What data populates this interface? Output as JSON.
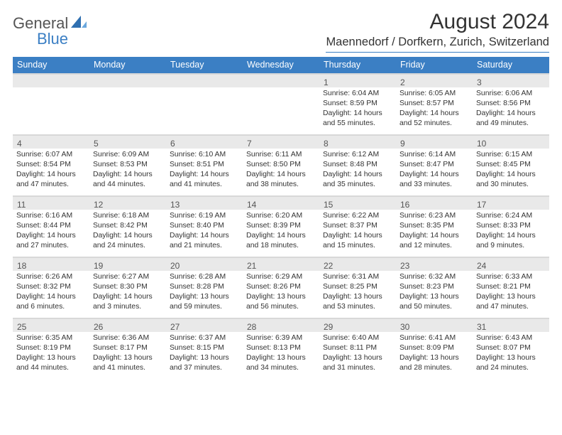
{
  "logo": {
    "text1": "General",
    "text2": "Blue"
  },
  "title": "August 2024",
  "location": "Maennedorf / Dorfkern, Zurich, Switzerland",
  "colors": {
    "header_bg": "#3b7fc4",
    "header_fg": "#ffffff",
    "daynum_bg": "#e9e9e9",
    "daynum_border": "#d8d8d8",
    "text": "#333333",
    "logo_gray": "#555555",
    "logo_blue": "#3b7fc4"
  },
  "day_headers": [
    "Sunday",
    "Monday",
    "Tuesday",
    "Wednesday",
    "Thursday",
    "Friday",
    "Saturday"
  ],
  "weeks": [
    [
      {
        "day": "",
        "sunrise": "",
        "sunset": "",
        "daylight": ""
      },
      {
        "day": "",
        "sunrise": "",
        "sunset": "",
        "daylight": ""
      },
      {
        "day": "",
        "sunrise": "",
        "sunset": "",
        "daylight": ""
      },
      {
        "day": "",
        "sunrise": "",
        "sunset": "",
        "daylight": ""
      },
      {
        "day": "1",
        "sunrise": "Sunrise: 6:04 AM",
        "sunset": "Sunset: 8:59 PM",
        "daylight": "Daylight: 14 hours and 55 minutes."
      },
      {
        "day": "2",
        "sunrise": "Sunrise: 6:05 AM",
        "sunset": "Sunset: 8:57 PM",
        "daylight": "Daylight: 14 hours and 52 minutes."
      },
      {
        "day": "3",
        "sunrise": "Sunrise: 6:06 AM",
        "sunset": "Sunset: 8:56 PM",
        "daylight": "Daylight: 14 hours and 49 minutes."
      }
    ],
    [
      {
        "day": "4",
        "sunrise": "Sunrise: 6:07 AM",
        "sunset": "Sunset: 8:54 PM",
        "daylight": "Daylight: 14 hours and 47 minutes."
      },
      {
        "day": "5",
        "sunrise": "Sunrise: 6:09 AM",
        "sunset": "Sunset: 8:53 PM",
        "daylight": "Daylight: 14 hours and 44 minutes."
      },
      {
        "day": "6",
        "sunrise": "Sunrise: 6:10 AM",
        "sunset": "Sunset: 8:51 PM",
        "daylight": "Daylight: 14 hours and 41 minutes."
      },
      {
        "day": "7",
        "sunrise": "Sunrise: 6:11 AM",
        "sunset": "Sunset: 8:50 PM",
        "daylight": "Daylight: 14 hours and 38 minutes."
      },
      {
        "day": "8",
        "sunrise": "Sunrise: 6:12 AM",
        "sunset": "Sunset: 8:48 PM",
        "daylight": "Daylight: 14 hours and 35 minutes."
      },
      {
        "day": "9",
        "sunrise": "Sunrise: 6:14 AM",
        "sunset": "Sunset: 8:47 PM",
        "daylight": "Daylight: 14 hours and 33 minutes."
      },
      {
        "day": "10",
        "sunrise": "Sunrise: 6:15 AM",
        "sunset": "Sunset: 8:45 PM",
        "daylight": "Daylight: 14 hours and 30 minutes."
      }
    ],
    [
      {
        "day": "11",
        "sunrise": "Sunrise: 6:16 AM",
        "sunset": "Sunset: 8:44 PM",
        "daylight": "Daylight: 14 hours and 27 minutes."
      },
      {
        "day": "12",
        "sunrise": "Sunrise: 6:18 AM",
        "sunset": "Sunset: 8:42 PM",
        "daylight": "Daylight: 14 hours and 24 minutes."
      },
      {
        "day": "13",
        "sunrise": "Sunrise: 6:19 AM",
        "sunset": "Sunset: 8:40 PM",
        "daylight": "Daylight: 14 hours and 21 minutes."
      },
      {
        "day": "14",
        "sunrise": "Sunrise: 6:20 AM",
        "sunset": "Sunset: 8:39 PM",
        "daylight": "Daylight: 14 hours and 18 minutes."
      },
      {
        "day": "15",
        "sunrise": "Sunrise: 6:22 AM",
        "sunset": "Sunset: 8:37 PM",
        "daylight": "Daylight: 14 hours and 15 minutes."
      },
      {
        "day": "16",
        "sunrise": "Sunrise: 6:23 AM",
        "sunset": "Sunset: 8:35 PM",
        "daylight": "Daylight: 14 hours and 12 minutes."
      },
      {
        "day": "17",
        "sunrise": "Sunrise: 6:24 AM",
        "sunset": "Sunset: 8:33 PM",
        "daylight": "Daylight: 14 hours and 9 minutes."
      }
    ],
    [
      {
        "day": "18",
        "sunrise": "Sunrise: 6:26 AM",
        "sunset": "Sunset: 8:32 PM",
        "daylight": "Daylight: 14 hours and 6 minutes."
      },
      {
        "day": "19",
        "sunrise": "Sunrise: 6:27 AM",
        "sunset": "Sunset: 8:30 PM",
        "daylight": "Daylight: 14 hours and 3 minutes."
      },
      {
        "day": "20",
        "sunrise": "Sunrise: 6:28 AM",
        "sunset": "Sunset: 8:28 PM",
        "daylight": "Daylight: 13 hours and 59 minutes."
      },
      {
        "day": "21",
        "sunrise": "Sunrise: 6:29 AM",
        "sunset": "Sunset: 8:26 PM",
        "daylight": "Daylight: 13 hours and 56 minutes."
      },
      {
        "day": "22",
        "sunrise": "Sunrise: 6:31 AM",
        "sunset": "Sunset: 8:25 PM",
        "daylight": "Daylight: 13 hours and 53 minutes."
      },
      {
        "day": "23",
        "sunrise": "Sunrise: 6:32 AM",
        "sunset": "Sunset: 8:23 PM",
        "daylight": "Daylight: 13 hours and 50 minutes."
      },
      {
        "day": "24",
        "sunrise": "Sunrise: 6:33 AM",
        "sunset": "Sunset: 8:21 PM",
        "daylight": "Daylight: 13 hours and 47 minutes."
      }
    ],
    [
      {
        "day": "25",
        "sunrise": "Sunrise: 6:35 AM",
        "sunset": "Sunset: 8:19 PM",
        "daylight": "Daylight: 13 hours and 44 minutes."
      },
      {
        "day": "26",
        "sunrise": "Sunrise: 6:36 AM",
        "sunset": "Sunset: 8:17 PM",
        "daylight": "Daylight: 13 hours and 41 minutes."
      },
      {
        "day": "27",
        "sunrise": "Sunrise: 6:37 AM",
        "sunset": "Sunset: 8:15 PM",
        "daylight": "Daylight: 13 hours and 37 minutes."
      },
      {
        "day": "28",
        "sunrise": "Sunrise: 6:39 AM",
        "sunset": "Sunset: 8:13 PM",
        "daylight": "Daylight: 13 hours and 34 minutes."
      },
      {
        "day": "29",
        "sunrise": "Sunrise: 6:40 AM",
        "sunset": "Sunset: 8:11 PM",
        "daylight": "Daylight: 13 hours and 31 minutes."
      },
      {
        "day": "30",
        "sunrise": "Sunrise: 6:41 AM",
        "sunset": "Sunset: 8:09 PM",
        "daylight": "Daylight: 13 hours and 28 minutes."
      },
      {
        "day": "31",
        "sunrise": "Sunrise: 6:43 AM",
        "sunset": "Sunset: 8:07 PM",
        "daylight": "Daylight: 13 hours and 24 minutes."
      }
    ]
  ]
}
